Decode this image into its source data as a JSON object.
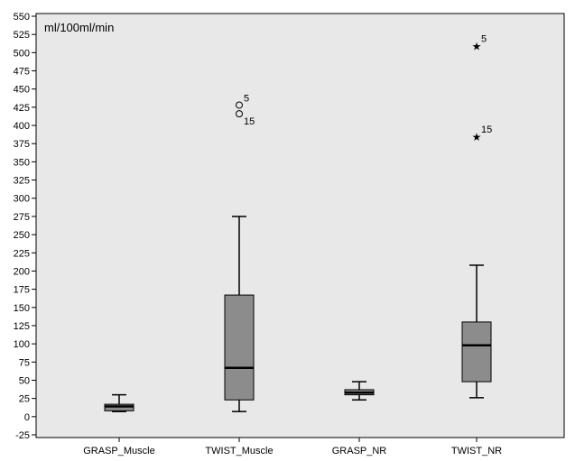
{
  "chart_data": {
    "type": "boxplot",
    "unit_label": "ml/100ml/min",
    "ylim": [
      -25,
      550
    ],
    "yticks": [
      -25,
      0,
      25,
      50,
      75,
      100,
      125,
      150,
      175,
      200,
      225,
      250,
      275,
      300,
      325,
      350,
      375,
      400,
      425,
      450,
      475,
      500,
      525,
      550
    ],
    "grid": false,
    "categories": [
      "GRASP_Muscle",
      "TWIST_Muscle",
      "GRASP_NR",
      "TWIST_NR"
    ],
    "boxes": [
      {
        "category": "GRASP_Muscle",
        "whisker_low": 7,
        "q1": 8,
        "median": 14,
        "q3": 17,
        "whisker_high": 30,
        "outliers": []
      },
      {
        "category": "TWIST_Muscle",
        "whisker_low": 7,
        "q1": 23,
        "median": 67,
        "q3": 167,
        "whisker_high": 275,
        "outliers": [
          {
            "value": 428,
            "label": "5",
            "marker": "circle"
          },
          {
            "value": 416,
            "label": "15",
            "marker": "circle"
          }
        ]
      },
      {
        "category": "GRASP_NR",
        "whisker_low": 23,
        "q1": 30,
        "median": 33,
        "q3": 37,
        "whisker_high": 48,
        "outliers": []
      },
      {
        "category": "TWIST_NR",
        "whisker_low": 26,
        "q1": 48,
        "median": 98,
        "q3": 130,
        "whisker_high": 208,
        "outliers": [
          {
            "value": 510,
            "label": "5",
            "marker": "star"
          },
          {
            "value": 385,
            "label": "15",
            "marker": "star"
          }
        ]
      }
    ],
    "colors": {
      "plot_background": "#e8e8e8",
      "box_fill": "#8c8c8c",
      "line": "#000000"
    }
  }
}
